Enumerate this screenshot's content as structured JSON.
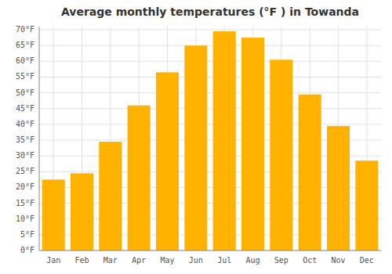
{
  "chart_data": {
    "type": "bar",
    "title": "Average monthly temperatures (°F ) in Towanda",
    "categories": [
      "Jan",
      "Feb",
      "Mar",
      "Apr",
      "May",
      "Jun",
      "Jul",
      "Aug",
      "Sep",
      "Oct",
      "Nov",
      "Dec"
    ],
    "values": [
      22.5,
      24.5,
      34.5,
      46.0,
      56.5,
      65.0,
      69.5,
      67.5,
      60.5,
      49.5,
      39.5,
      28.5
    ],
    "color": "#FFB300",
    "ylim": [
      0,
      71
    ],
    "yticks": [
      {
        "value": 0,
        "label": "0°F"
      },
      {
        "value": 5,
        "label": "5°F"
      },
      {
        "value": 10,
        "label": "10°F"
      },
      {
        "value": 15,
        "label": "15°F"
      },
      {
        "value": 20,
        "label": "20°F"
      },
      {
        "value": 25,
        "label": "25°F"
      },
      {
        "value": 30,
        "label": "30°F"
      },
      {
        "value": 35,
        "label": "35°F"
      },
      {
        "value": 40,
        "label": "40°F"
      },
      {
        "value": 45,
        "label": "45°F"
      },
      {
        "value": 50,
        "label": "50°F"
      },
      {
        "value": 55,
        "label": "55°F"
      },
      {
        "value": 60,
        "label": "60°F"
      },
      {
        "value": 65,
        "label": "65°F"
      },
      {
        "value": 70,
        "label": "70°F"
      }
    ],
    "grid": true
  }
}
